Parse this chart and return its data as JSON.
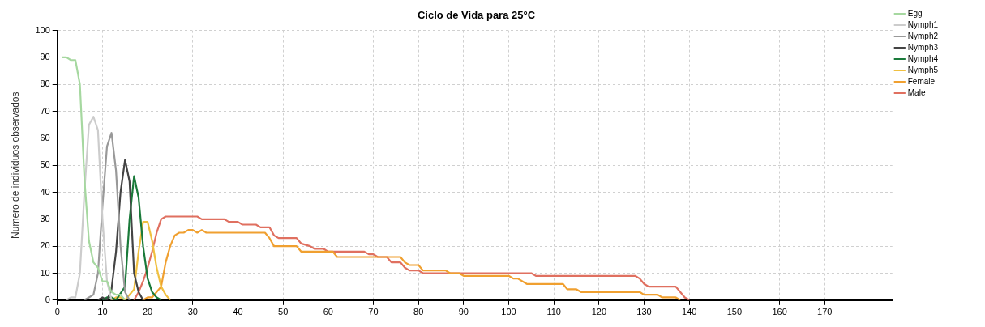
{
  "chart_data": {
    "type": "line",
    "title": "Ciclo de Vida para 25°C",
    "ylabel": "Numero de individuos observados",
    "xlim": [
      0,
      185
    ],
    "xticks": [
      0,
      10,
      20,
      30,
      40,
      50,
      60,
      70,
      80,
      90,
      100,
      110,
      120,
      130,
      140,
      150,
      160,
      170
    ],
    "ylim": [
      0,
      100
    ],
    "yticks": [
      0,
      10,
      20,
      30,
      40,
      50,
      60,
      70,
      80,
      90,
      100
    ],
    "grid": true,
    "legend": "top right",
    "marker": "none",
    "line_style": "solid",
    "series": [
      {
        "name": "Egg",
        "color": "#a6d8a0",
        "x": [
          1,
          2,
          3,
          4,
          5,
          6,
          7,
          8,
          9,
          10,
          11,
          12,
          13,
          14,
          15
        ],
        "values": [
          90,
          90,
          89,
          89,
          80,
          45,
          22,
          14,
          12,
          7,
          7,
          3,
          2,
          2,
          0
        ]
      },
      {
        "name": "Nymph1",
        "color": "#cccccc",
        "x": [
          2,
          3,
          4,
          5,
          6,
          7,
          8,
          9,
          10,
          11,
          12
        ],
        "values": [
          0,
          1,
          1,
          10,
          40,
          65,
          68,
          63,
          30,
          7,
          0
        ]
      },
      {
        "name": "Nymph2",
        "color": "#999999",
        "x": [
          6,
          7,
          8,
          9,
          10,
          11,
          12,
          13,
          14,
          15,
          16
        ],
        "values": [
          0,
          1,
          2,
          10,
          35,
          57,
          62,
          48,
          20,
          3,
          0
        ]
      },
      {
        "name": "Nymph3",
        "color": "#444444",
        "x": [
          9,
          10,
          11,
          12,
          13,
          14,
          15,
          16,
          17,
          18,
          19
        ],
        "values": [
          0,
          1,
          0,
          4,
          18,
          40,
          52,
          44,
          10,
          3,
          0
        ]
      },
      {
        "name": "Nymph4",
        "color": "#1a7a3a",
        "x": [
          10,
          11,
          12,
          13,
          15,
          16,
          17,
          18,
          19,
          20,
          21,
          22,
          23
        ],
        "values": [
          0,
          1,
          1,
          0,
          5,
          30,
          46,
          38,
          20,
          8,
          3,
          1,
          0
        ]
      },
      {
        "name": "Nymph5",
        "color": "#f0c040",
        "x": [
          12,
          13,
          14,
          15,
          17,
          18,
          19,
          20,
          21,
          22,
          23,
          24,
          25
        ],
        "values": [
          0,
          1,
          1,
          0,
          4,
          18,
          29,
          29,
          22,
          12,
          5,
          2,
          0
        ]
      },
      {
        "name": "Female",
        "color": "#f0a030",
        "x": [
          19,
          20,
          21,
          22,
          23,
          24,
          25,
          26,
          27,
          28,
          29,
          30,
          31,
          32,
          33,
          46,
          47,
          48,
          53,
          54,
          61,
          62,
          76,
          77,
          78,
          80,
          81,
          86,
          87,
          89,
          90,
          100,
          101,
          102,
          104,
          112,
          113,
          115,
          116,
          129,
          130,
          133,
          134,
          137,
          138
        ],
        "values": [
          0,
          1,
          1,
          3,
          5,
          14,
          20,
          24,
          25,
          25,
          26,
          26,
          25,
          26,
          25,
          25,
          23,
          20,
          20,
          18,
          18,
          16,
          16,
          14,
          13,
          13,
          11,
          11,
          10,
          10,
          9,
          9,
          8,
          8,
          6,
          6,
          4,
          4,
          3,
          3,
          2,
          2,
          1,
          1,
          0
        ]
      },
      {
        "name": "Male",
        "color": "#e07060",
        "x": [
          17,
          18,
          19,
          20,
          21,
          22,
          23,
          24,
          31,
          32,
          37,
          38,
          40,
          41,
          44,
          45,
          47,
          48,
          49,
          53,
          54,
          56,
          57,
          59,
          60,
          68,
          69,
          70,
          71,
          73,
          74,
          76,
          77,
          78,
          80,
          81,
          105,
          106,
          128,
          129,
          130,
          131,
          137,
          138,
          139,
          140
        ],
        "values": [
          0,
          3,
          7,
          12,
          18,
          25,
          30,
          31,
          31,
          30,
          30,
          29,
          29,
          28,
          28,
          27,
          27,
          24,
          23,
          23,
          21,
          20,
          19,
          19,
          18,
          18,
          17,
          17,
          16,
          16,
          14,
          14,
          12,
          11,
          11,
          10,
          10,
          9,
          9,
          8,
          6,
          5,
          5,
          3,
          1,
          0
        ]
      }
    ]
  }
}
